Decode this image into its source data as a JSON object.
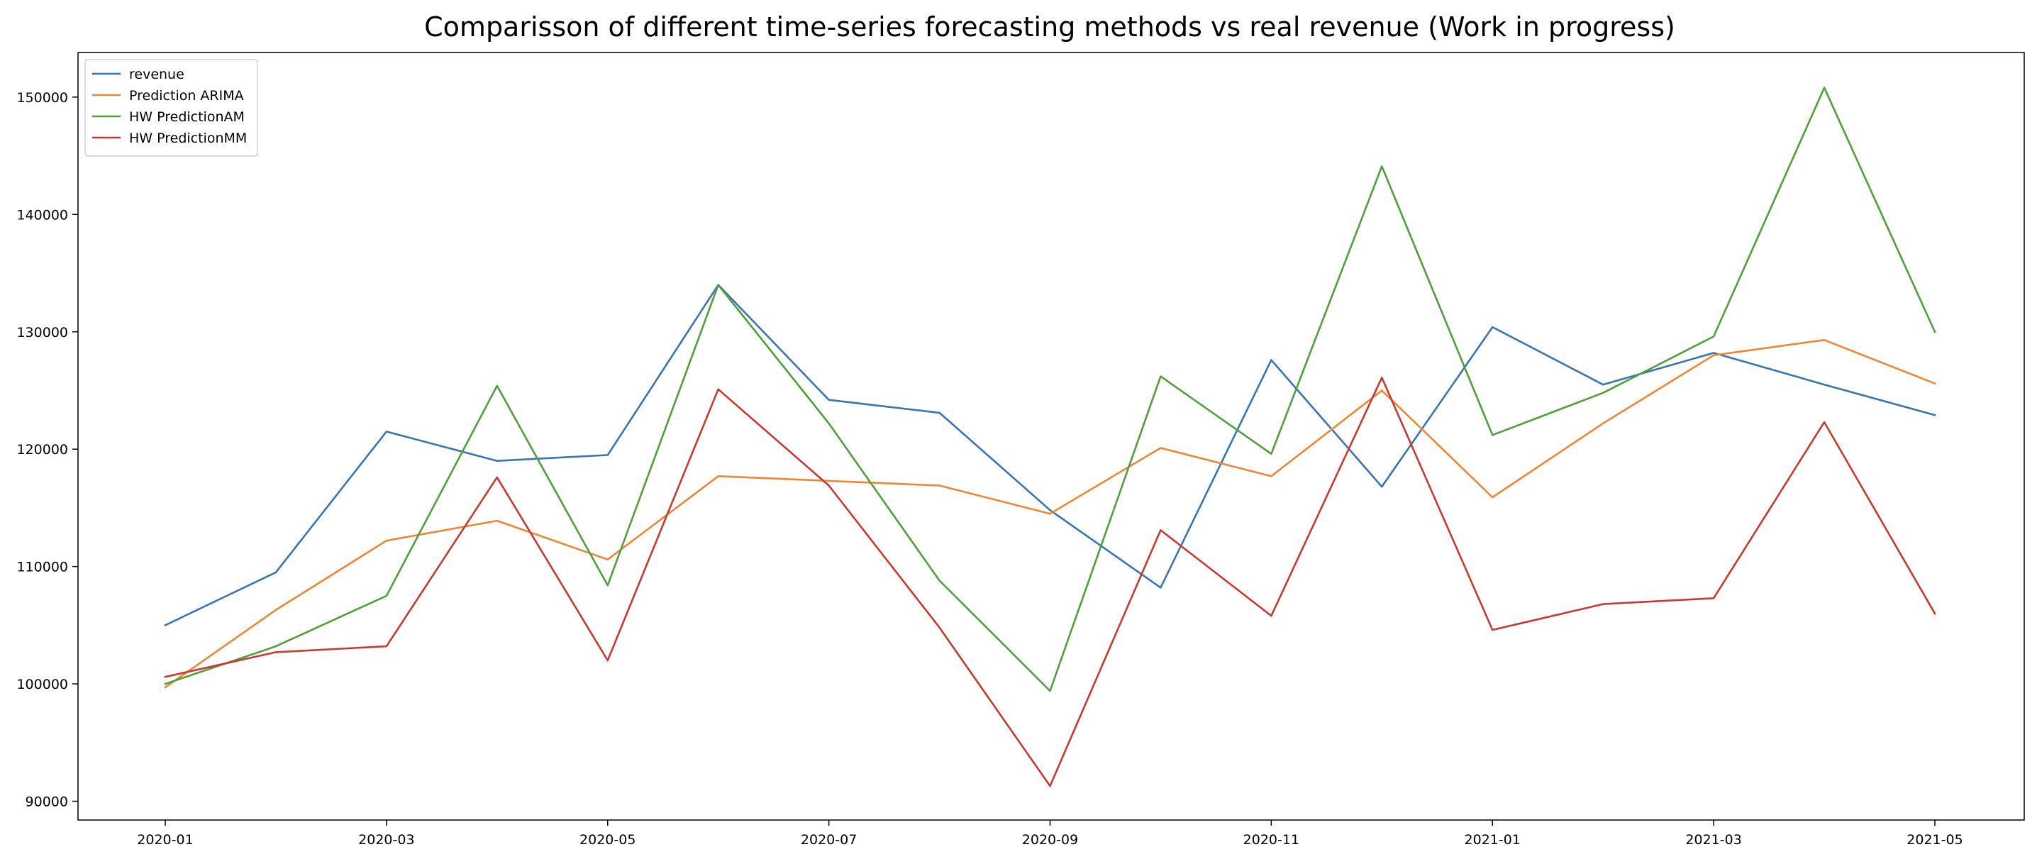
{
  "chart_data": {
    "type": "line",
    "title": "Comparisson of different time-series forecasting methods vs real revenue (Work in progress)",
    "xlabel": "",
    "ylabel": "",
    "x": [
      "2020-01",
      "2020-02",
      "2020-03",
      "2020-04",
      "2020-05",
      "2020-06",
      "2020-07",
      "2020-08",
      "2020-09",
      "2020-10",
      "2020-11",
      "2020-12",
      "2021-01",
      "2021-02",
      "2021-03",
      "2021-04",
      "2021-05"
    ],
    "x_ticks": [
      "2020-01",
      "2020-03",
      "2020-05",
      "2020-07",
      "2020-09",
      "2020-11",
      "2021-01",
      "2021-03",
      "2021-05"
    ],
    "y_ticks": [
      90000,
      100000,
      110000,
      120000,
      130000,
      140000,
      150000
    ],
    "ylim": [
      88400,
      153800
    ],
    "grid": false,
    "legend_position": "upper-left",
    "series": [
      {
        "name": "revenue",
        "color": "#3b75af",
        "values": [
          105000,
          109500,
          121500,
          119000,
          119500,
          134000,
          124200,
          123100,
          114800,
          108200,
          127600,
          116800,
          130400,
          125500,
          128200,
          125500,
          122900
        ]
      },
      {
        "name": "Prediction ARIMA",
        "color": "#ef8636",
        "values": [
          99700,
          106300,
          112200,
          113900,
          110600,
          117700,
          117300,
          116900,
          114500,
          120100,
          117700,
          125000,
          115900,
          122200,
          128000,
          129300,
          125600
        ]
      },
      {
        "name": "HW PredictionAM",
        "color": "#519e3e",
        "values": [
          100000,
          103200,
          107500,
          125400,
          108400,
          134000,
          122200,
          108800,
          99400,
          126200,
          119600,
          144100,
          121200,
          124800,
          129600,
          150800,
          130000
        ]
      },
      {
        "name": "HW PredictionMM",
        "color": "#c53a32",
        "values": [
          100600,
          102700,
          103200,
          117600,
          102000,
          125100,
          116900,
          104800,
          91300,
          113100,
          105800,
          126100,
          104600,
          106800,
          107300,
          122300,
          106000
        ]
      }
    ]
  }
}
